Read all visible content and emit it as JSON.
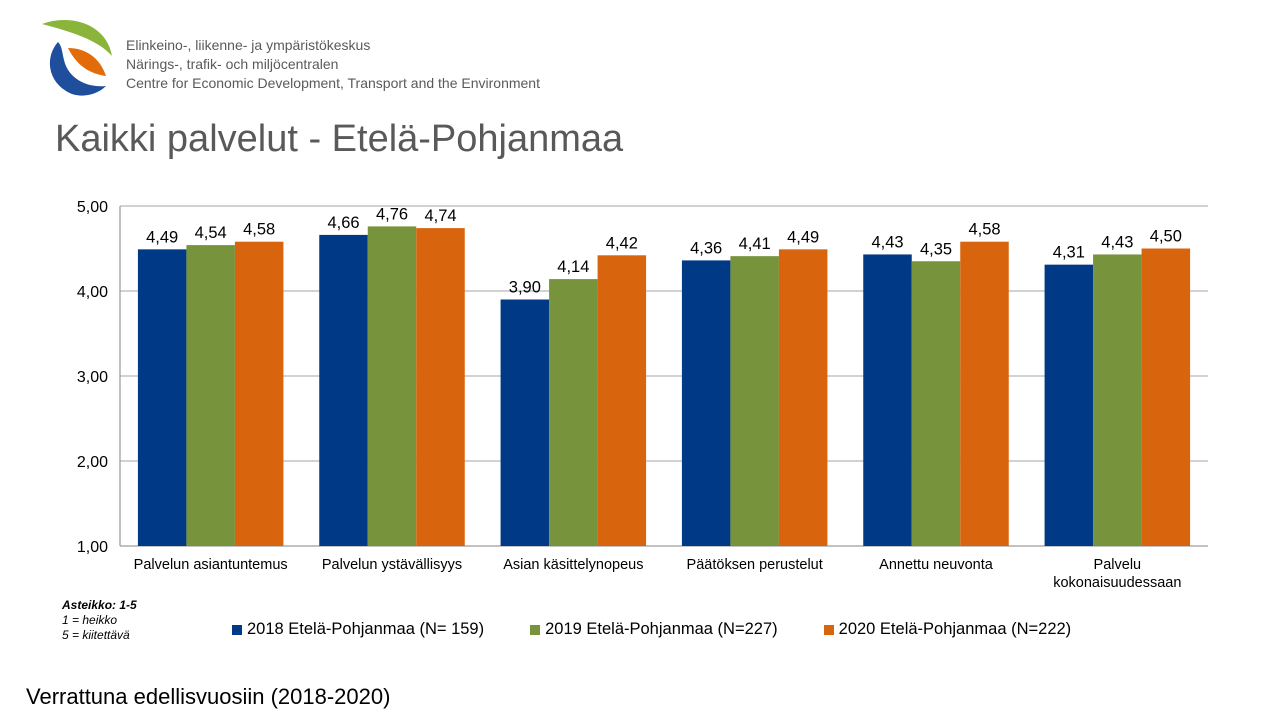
{
  "organization": {
    "lines": [
      "Elinkeino-, liikenne- ja ympäristökeskus",
      "Närings-, trafik- och miljöcentralen",
      "Centre for Economic Development, Transport and the Environment"
    ]
  },
  "logo": {
    "icon": "ely-centre-logo",
    "colors": [
      "#8ab43a",
      "#1f4e9c",
      "#e36c0a"
    ]
  },
  "page_title": "Kaikki palvelut - Etelä-Pohjanmaa",
  "scale_note": {
    "heading": "Asteikko: 1-5",
    "items": [
      "1 = heikko",
      "5 = kiitettävä"
    ]
  },
  "footer_text": "Verrattuna edellisvuosiin (2018-2020)",
  "chart_data": {
    "type": "bar",
    "title": "",
    "xlabel": "",
    "ylabel": "",
    "ylim": [
      1,
      5
    ],
    "yticks": [
      "1,00",
      "2,00",
      "3,00",
      "4,00",
      "5,00"
    ],
    "grid": true,
    "legend_position": "bottom",
    "categories": [
      [
        "Palvelun asiantuntemus"
      ],
      [
        "Palvelun ystävällisyys"
      ],
      [
        "Asian käsittelynopeus"
      ],
      [
        "Päätöksen perustelut"
      ],
      [
        "Annettu neuvonta"
      ],
      [
        "Palvelu",
        "kokonaisuudessaan"
      ]
    ],
    "series": [
      {
        "name": "2018 Etelä-Pohjanmaa (N= 159)",
        "color": "#003a86",
        "values": [
          4.49,
          4.66,
          3.9,
          4.36,
          4.43,
          4.31
        ]
      },
      {
        "name": "2019 Etelä-Pohjanmaa (N=227)",
        "color": "#77933c",
        "values": [
          4.54,
          4.76,
          4.14,
          4.41,
          4.35,
          4.43
        ]
      },
      {
        "name": "2020 Etelä-Pohjanmaa (N=222)",
        "color": "#d9640e",
        "values": [
          4.58,
          4.74,
          4.42,
          4.49,
          4.58,
          4.5
        ]
      }
    ]
  }
}
